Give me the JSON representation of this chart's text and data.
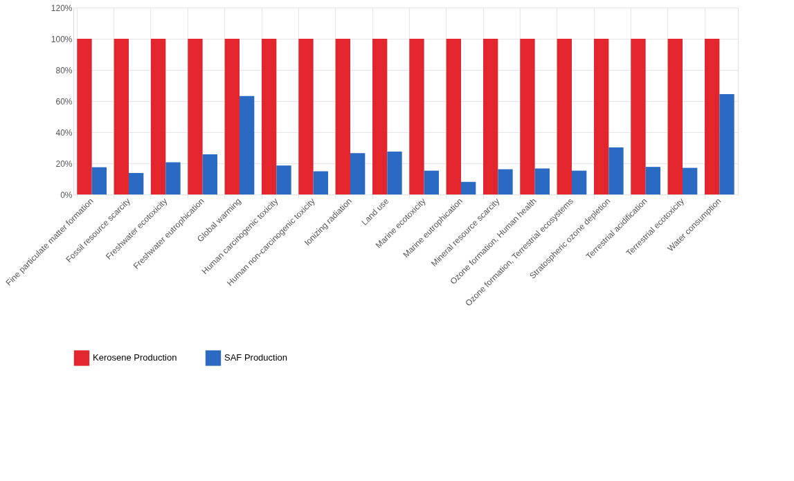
{
  "chart_data": {
    "type": "bar",
    "categories": [
      "Fine particulate matter formation",
      "Fossil resource scarcity",
      "Freshwater ecotoxicity",
      "Freshwater eutrophication",
      "Global warming",
      "Human carcinogenic toxicity",
      "Human non-carcinogenic toxicity",
      "Ionizing radiation",
      "Land use",
      "Marine ecotoxicity",
      "Marine eutrophication",
      "Mineral resource scarcity",
      "Ozone formation, Human health",
      "Ozone formation, Terrestrial ecosystems",
      "Stratospheric ozone depletion",
      "Terrestrial acidification",
      "Terrestrial ecotoxicity",
      "Water consumption"
    ],
    "series": [
      {
        "name": "Kerosene Production",
        "color": "#e3262e",
        "values": [
          100,
          100,
          100,
          100,
          100,
          100,
          100,
          100,
          100,
          100,
          100,
          100,
          100,
          100,
          100,
          100,
          100,
          100
        ]
      },
      {
        "name": "SAF Production",
        "color": "#2a6ac3",
        "values": [
          17.5,
          13.8,
          20.7,
          25.8,
          63.2,
          18.6,
          14.9,
          26.6,
          27.6,
          15.3,
          8.1,
          16.2,
          16.7,
          15.3,
          30.2,
          17.7,
          17.1,
          64.5
        ]
      }
    ],
    "ylim": [
      0,
      120
    ],
    "yticks": [
      {
        "value": 0,
        "label": "0%"
      },
      {
        "value": 20,
        "label": "20%"
      },
      {
        "value": 40,
        "label": "40%"
      },
      {
        "value": 60,
        "label": "60%"
      },
      {
        "value": 80,
        "label": "80%"
      },
      {
        "value": 100,
        "label": "100%"
      },
      {
        "value": 120,
        "label": "120%"
      }
    ],
    "grid": true,
    "legend": "bottom"
  }
}
